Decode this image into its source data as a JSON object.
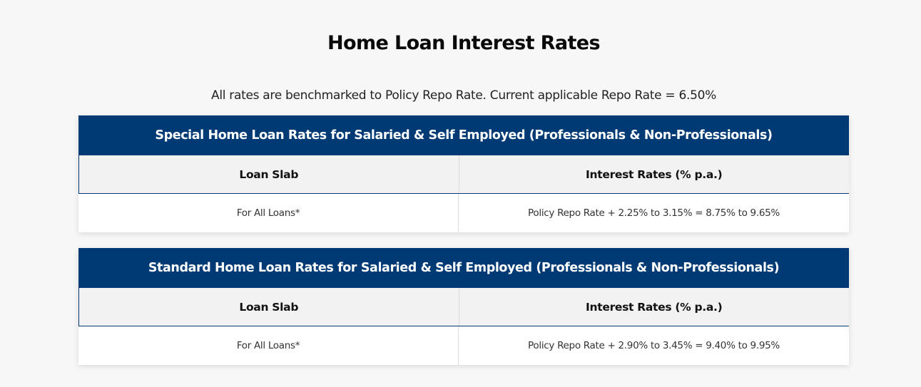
{
  "page": {
    "title": "Home Loan Interest Rates",
    "subtitle": "All rates are benchmarked to Policy Repo Rate. Current applicable Repo Rate = 6.50%"
  },
  "tables": [
    {
      "header": "Special Home Loan Rates for Salaried & Self Employed (Professionals & Non-Professionals)",
      "columns": [
        "Loan Slab",
        "Interest Rates (% p.a.)"
      ],
      "rows": [
        [
          "For All Loans*",
          "Policy Repo Rate + 2.25% to 3.15% = 8.75% to 9.65%"
        ]
      ]
    },
    {
      "header": "Standard Home Loan Rates for Salaried & Self Employed (Professionals & Non-Professionals)",
      "columns": [
        "Loan Slab",
        "Interest Rates (% p.a.)"
      ],
      "rows": [
        [
          "For All Loans*",
          "Policy Repo Rate + 2.90% to 3.45% = 9.40% to 9.95%"
        ]
      ]
    }
  ],
  "colors": {
    "header_bg": "#003a75",
    "header_text": "#ffffff",
    "column_header_bg": "#f2f2f2",
    "page_bg": "#f7f7f7"
  }
}
